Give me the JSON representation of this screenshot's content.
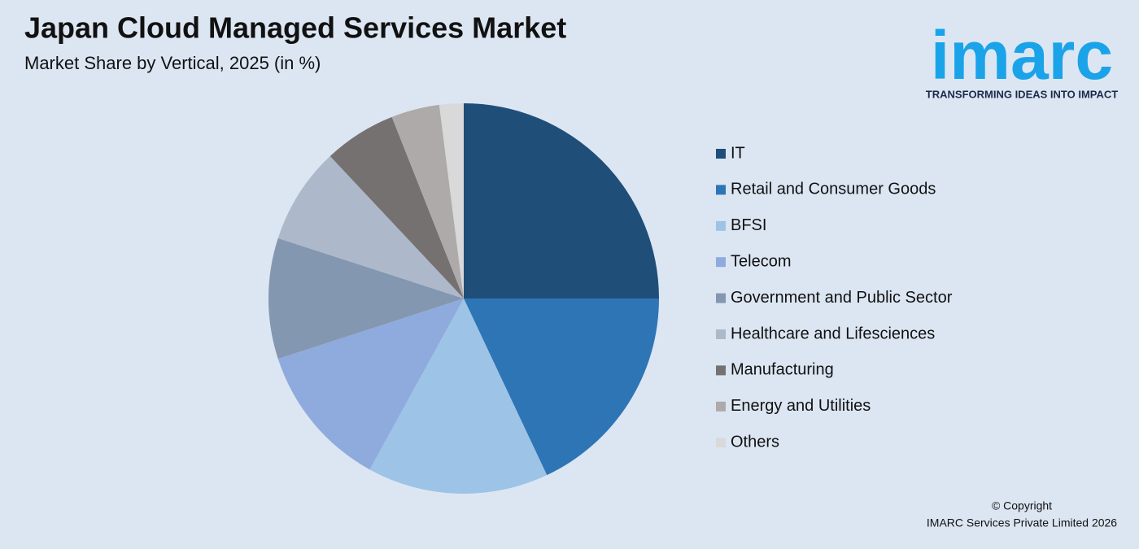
{
  "chart_data": {
    "type": "pie",
    "title": "Japan Cloud Managed Services Market",
    "subtitle": "Market Share by Vertical, 2025 (in %)",
    "categories": [
      "IT",
      "Retail and Consumer Goods",
      "BFSI",
      "Telecom",
      "Government and Public Sector",
      "Healthcare and Lifesciences",
      "Manufacturing",
      "Energy and Utilities",
      "Others"
    ],
    "values": [
      25,
      18,
      15,
      12,
      10,
      8,
      6,
      4,
      2
    ],
    "colors": [
      "#1f4e79",
      "#2e75b6",
      "#9dc3e6",
      "#8faadc",
      "#8497b0",
      "#adb9ca",
      "#767171",
      "#aeaaaa",
      "#d9d9d9"
    ],
    "legend": "right"
  },
  "logo": {
    "text": "imarc",
    "tagline": "TRANSFORMING IDEAS INTO IMPACT"
  },
  "copyright": [
    "© Copyright",
    "IMARC Services Private Limited 2026"
  ]
}
